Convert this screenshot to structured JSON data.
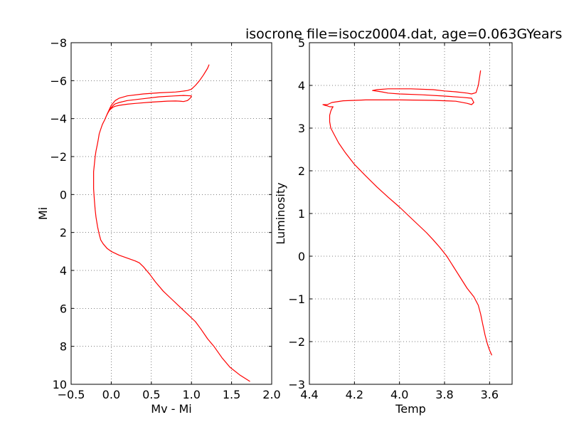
{
  "title": "isocrone file=isocz0004.dat, age=0.063GYears",
  "chart_data": [
    {
      "type": "line",
      "xlabel": "Mv - Mi",
      "ylabel": "Mi",
      "xlim": [
        -0.5,
        2.0
      ],
      "ylim": [
        10,
        -8
      ],
      "y_inverted": true,
      "grid": true,
      "xticks": [
        "−0.5",
        "0.0",
        "0.5",
        "1.0",
        "1.5",
        "2.0"
      ],
      "yticks": [
        "−8",
        "−6",
        "−4",
        "−2",
        "0",
        "2",
        "4",
        "6",
        "8",
        "10"
      ],
      "series": [
        {
          "color": "#ff0000",
          "x": [
            1.73,
            1.6,
            1.48,
            1.38,
            1.28,
            1.2,
            1.12,
            1.05,
            0.95,
            0.85,
            0.75,
            0.65,
            0.55,
            0.48,
            0.4,
            0.35,
            0.3,
            0.2,
            0.1,
            0.0,
            -0.05,
            -0.1,
            -0.13,
            -0.15,
            -0.17,
            -0.19,
            -0.2,
            -0.21,
            -0.22,
            -0.22,
            -0.22,
            -0.21,
            -0.2,
            -0.19,
            -0.18,
            -0.17,
            -0.16,
            -0.15,
            -0.13,
            -0.11,
            -0.08,
            -0.05,
            -0.02,
            0.02,
            0.05,
            0.1,
            0.2,
            0.3,
            0.5,
            0.7,
            0.8,
            0.85,
            0.9,
            0.95,
            0.99,
            1.0,
            0.9,
            0.8,
            0.6,
            0.4,
            0.2,
            0.1,
            0.05,
            0.02,
            -0.02,
            -0.06,
            -0.08,
            -0.05,
            0.0,
            0.05,
            0.1,
            0.2,
            0.4,
            0.6,
            0.8,
            0.9,
            0.95,
            1.0,
            1.05,
            1.1,
            1.15,
            1.2,
            1.22
          ],
          "y": [
            9.85,
            9.5,
            9.1,
            8.6,
            8.0,
            7.6,
            7.1,
            6.7,
            6.3,
            5.9,
            5.5,
            5.1,
            4.6,
            4.2,
            3.8,
            3.6,
            3.5,
            3.35,
            3.2,
            3.0,
            2.85,
            2.6,
            2.4,
            2.1,
            1.7,
            1.2,
            0.8,
            0.3,
            -0.3,
            -0.8,
            -1.2,
            -1.6,
            -2.0,
            -2.3,
            -2.5,
            -2.7,
            -2.95,
            -3.2,
            -3.45,
            -3.7,
            -3.95,
            -4.25,
            -4.45,
            -4.6,
            -4.65,
            -4.7,
            -4.76,
            -4.8,
            -4.87,
            -4.92,
            -4.93,
            -4.92,
            -4.9,
            -4.95,
            -5.1,
            -5.2,
            -5.22,
            -5.2,
            -5.15,
            -5.05,
            -4.95,
            -4.85,
            -4.78,
            -4.68,
            -4.47,
            -4.15,
            -3.95,
            -4.25,
            -4.7,
            -4.95,
            -5.08,
            -5.2,
            -5.3,
            -5.36,
            -5.4,
            -5.45,
            -5.48,
            -5.55,
            -5.75,
            -6.0,
            -6.3,
            -6.65,
            -6.85
          ]
        }
      ]
    },
    {
      "type": "line",
      "xlabel": "Temp",
      "ylabel": "Luminosity",
      "xlim": [
        4.4,
        3.5
      ],
      "ylim": [
        -3,
        5
      ],
      "x_inverted": true,
      "grid": true,
      "xticks": [
        "4.4",
        "4.2",
        "4.0",
        "3.8",
        "3.6"
      ],
      "yticks": [
        "−3",
        "−2",
        "−1",
        "0",
        "1",
        "2",
        "3",
        "4",
        "5"
      ],
      "series": [
        {
          "color": "#ff0000",
          "x": [
            3.59,
            3.6,
            3.61,
            3.62,
            3.63,
            3.64,
            3.65,
            3.67,
            3.7,
            3.73,
            3.76,
            3.79,
            3.82,
            3.85,
            3.88,
            3.92,
            3.96,
            4.0,
            4.05,
            4.1,
            4.15,
            4.2,
            4.24,
            4.27,
            4.29,
            4.305,
            4.31,
            4.31,
            4.305,
            4.3,
            4.295,
            4.3,
            4.31,
            4.32,
            4.33,
            4.34,
            4.34,
            4.32,
            4.3,
            4.25,
            4.15,
            4.0,
            3.85,
            3.75,
            3.7,
            3.68,
            3.67,
            3.68,
            3.72,
            3.8,
            3.9,
            4.0,
            4.05,
            4.08,
            4.12,
            4.1,
            4.05,
            4.0,
            3.95,
            3.85,
            3.8,
            3.75,
            3.7,
            3.68,
            3.66,
            3.65,
            3.64
          ],
          "y": [
            -2.32,
            -2.2,
            -2.05,
            -1.85,
            -1.6,
            -1.35,
            -1.15,
            -0.95,
            -0.75,
            -0.5,
            -0.25,
            0.0,
            0.2,
            0.38,
            0.55,
            0.75,
            0.95,
            1.15,
            1.38,
            1.62,
            1.88,
            2.15,
            2.42,
            2.65,
            2.85,
            3.0,
            3.15,
            3.3,
            3.4,
            3.46,
            3.5,
            3.5,
            3.5,
            3.52,
            3.53,
            3.55,
            3.55,
            3.55,
            3.6,
            3.64,
            3.66,
            3.66,
            3.65,
            3.63,
            3.58,
            3.55,
            3.6,
            3.7,
            3.72,
            3.75,
            3.78,
            3.8,
            3.82,
            3.85,
            3.88,
            3.9,
            3.92,
            3.92,
            3.92,
            3.9,
            3.87,
            3.85,
            3.82,
            3.8,
            3.83,
            4.0,
            4.35
          ]
        }
      ]
    }
  ]
}
